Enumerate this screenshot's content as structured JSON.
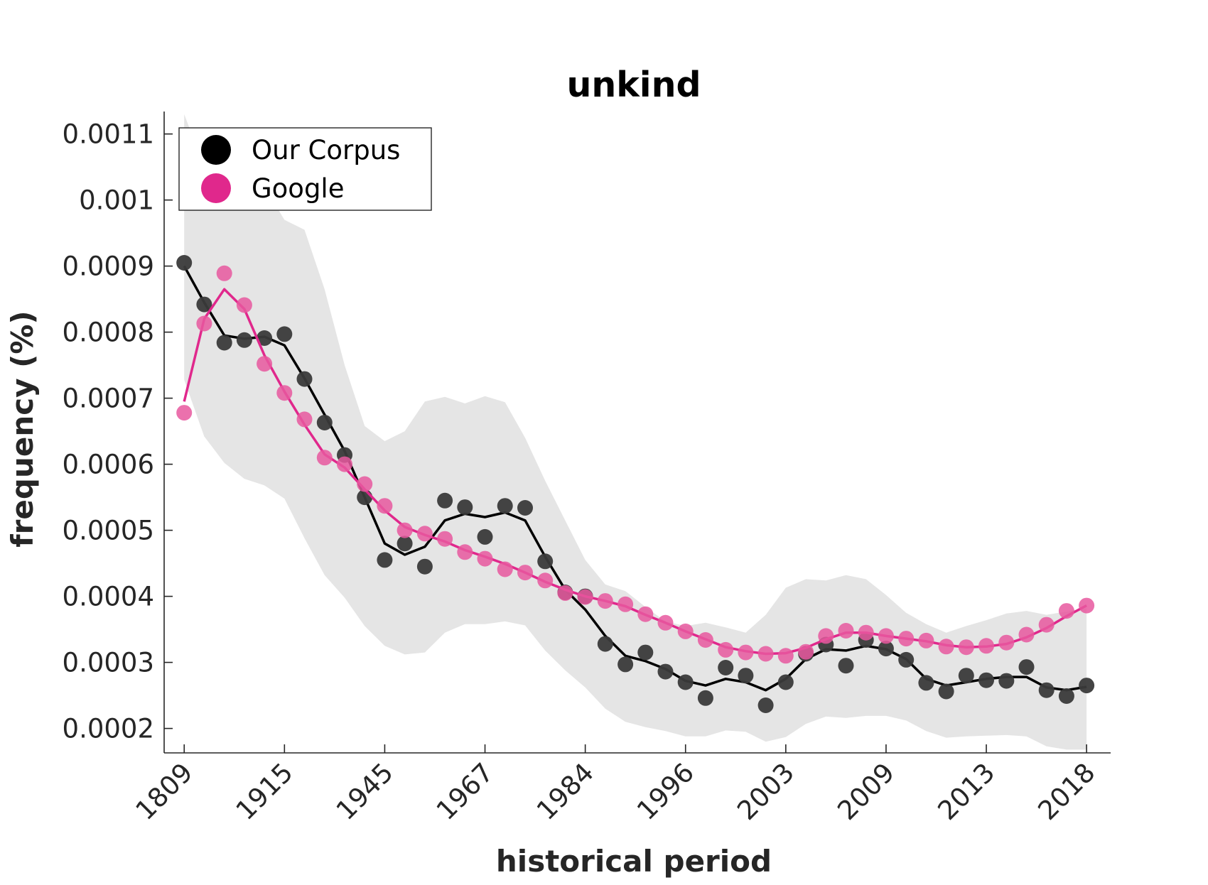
{
  "chart_data": {
    "type": "line",
    "title": "unkind",
    "xlabel": "historical period",
    "ylabel": "frequency (%)",
    "x_tick_labels": [
      "1809",
      "1915",
      "1945",
      "1967",
      "1984",
      "1996",
      "2003",
      "2009",
      "2013",
      "2018"
    ],
    "x_tick_positions": [
      1,
      6,
      11,
      16,
      21,
      26,
      31,
      36,
      41,
      46
    ],
    "xlim": [
      0,
      47.2
    ],
    "ylim": [
      0.000163,
      0.001134
    ],
    "y_ticks": [
      0.0002,
      0.0003,
      0.0004,
      0.0005,
      0.0006,
      0.0007,
      0.0008,
      0.0009,
      0.001,
      0.0011
    ],
    "y_tick_labels": [
      "0.0002",
      "0.0003",
      "0.0004",
      "0.0005",
      "0.0006",
      "0.0007",
      "0.0008",
      "0.0009",
      "0.001",
      "0.0011"
    ],
    "legend_position": "top-left",
    "x": [
      1,
      2,
      3,
      4,
      5,
      6,
      7,
      8,
      9,
      10,
      11,
      12,
      13,
      14,
      15,
      16,
      17,
      18,
      19,
      20,
      21,
      22,
      23,
      24,
      25,
      26,
      27,
      28,
      29,
      30,
      31,
      32,
      33,
      34,
      35,
      36,
      37,
      38,
      39,
      40,
      41,
      42,
      43,
      44,
      45,
      46
    ],
    "series": [
      {
        "name": "Our Corpus",
        "color": "#000000",
        "marker_color": "#3a3a3a",
        "points": [
          0.000905,
          0.000842,
          0.000784,
          0.000788,
          0.000791,
          0.000797,
          0.000729,
          0.000663,
          0.000614,
          0.00055,
          0.000455,
          0.00048,
          0.000445,
          0.000545,
          0.000535,
          0.00049,
          0.000537,
          0.000534,
          0.000453,
          0.000406,
          0.0004,
          0.000328,
          0.000297,
          0.000315,
          0.000286,
          0.00027,
          0.000246,
          0.000292,
          0.00028,
          0.000235,
          0.00027,
          0.000313,
          0.000327,
          0.000295,
          0.000334,
          0.000321,
          0.000304,
          0.000269,
          0.000256,
          0.00028,
          0.000273,
          0.000272,
          0.000293,
          0.000258,
          0.000249,
          0.000265
        ],
        "line": [
          0.0009,
          0.000845,
          0.000795,
          0.00079,
          0.000793,
          0.00078,
          0.00073,
          0.000675,
          0.00062,
          0.00055,
          0.00048,
          0.000463,
          0.000475,
          0.000515,
          0.000525,
          0.00052,
          0.000527,
          0.000515,
          0.00046,
          0.00041,
          0.00038,
          0.00034,
          0.00031,
          0.000302,
          0.00029,
          0.000272,
          0.000265,
          0.000275,
          0.00027,
          0.000258,
          0.000275,
          0.000305,
          0.00032,
          0.000318,
          0.000325,
          0.00032,
          0.000305,
          0.000275,
          0.000265,
          0.00027,
          0.000275,
          0.000278,
          0.000278,
          0.000262,
          0.000258,
          0.000263
        ]
      },
      {
        "name": "Google",
        "color": "#e0288c",
        "marker_color": "#e8589f",
        "points": [
          0.000678,
          0.000813,
          0.000889,
          0.000841,
          0.000752,
          0.000708,
          0.000668,
          0.00061,
          0.0006,
          0.00057,
          0.000537,
          0.0005,
          0.000495,
          0.000487,
          0.000467,
          0.000457,
          0.000441,
          0.000436,
          0.000424,
          0.000405,
          0.000399,
          0.000393,
          0.000388,
          0.000373,
          0.00036,
          0.000347,
          0.000334,
          0.000319,
          0.000315,
          0.000313,
          0.00031,
          0.000316,
          0.00034,
          0.000348,
          0.000345,
          0.00034,
          0.000336,
          0.000333,
          0.000324,
          0.000323,
          0.000325,
          0.00033,
          0.000342,
          0.000357,
          0.000378,
          0.000386
        ],
        "line": [
          0.000695,
          0.00082,
          0.000865,
          0.000835,
          0.000765,
          0.00071,
          0.00066,
          0.000615,
          0.000595,
          0.000562,
          0.00053,
          0.000505,
          0.000493,
          0.000483,
          0.00047,
          0.00046,
          0.000449,
          0.000436,
          0.000422,
          0.00041,
          0.0004,
          0.000393,
          0.000385,
          0.000372,
          0.00036,
          0.000347,
          0.000335,
          0.000323,
          0.000317,
          0.000313,
          0.000314,
          0.000322,
          0.000335,
          0.000345,
          0.000345,
          0.00034,
          0.000336,
          0.000332,
          0.000326,
          0.000323,
          0.000324,
          0.000328,
          0.000338,
          0.000352,
          0.00037,
          0.000386
        ]
      }
    ],
    "band": {
      "color": "#e5e5e5",
      "upper": [
        0.00113,
        0.00105,
        0.00101,
        0.001015,
        0.00102,
        0.00097,
        0.000955,
        0.000865,
        0.00075,
        0.000658,
        0.000635,
        0.00065,
        0.000695,
        0.000702,
        0.000692,
        0.000703,
        0.000694,
        0.00064,
        0.000575,
        0.000515,
        0.000455,
        0.000418,
        0.000408,
        0.000384,
        0.000362,
        0.000355,
        0.00036,
        0.000353,
        0.000345,
        0.000372,
        0.000413,
        0.000426,
        0.000424,
        0.000432,
        0.000426,
        0.000402,
        0.000375,
        0.000358,
        0.000345,
        0.000355,
        0.000364,
        0.000374,
        0.000378,
        0.000372,
        0.000377,
        0.000382
      ],
      "lower": [
        0.000728,
        0.000642,
        0.000602,
        0.000578,
        0.000568,
        0.000548,
        0.000488,
        0.000432,
        0.000398,
        0.000355,
        0.000325,
        0.000312,
        0.000315,
        0.000345,
        0.000358,
        0.000358,
        0.000362,
        0.000356,
        0.000318,
        0.000288,
        0.000262,
        0.00023,
        0.00021,
        0.000202,
        0.000196,
        0.000188,
        0.000188,
        0.000197,
        0.000195,
        0.00018,
        0.000187,
        0.000207,
        0.000218,
        0.000216,
        0.000219,
        0.000219,
        0.000212,
        0.000196,
        0.000186,
        0.000188,
        0.000189,
        0.00019,
        0.000188,
        0.000173,
        0.000168,
        0.000168
      ]
    }
  }
}
